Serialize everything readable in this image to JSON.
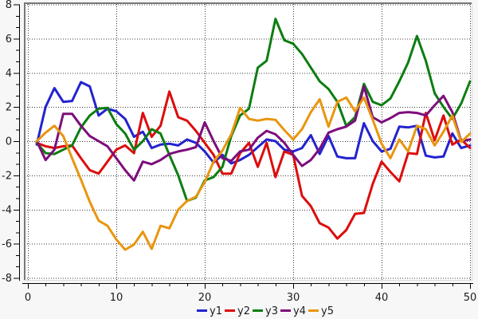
{
  "figure": {
    "background": "#f7f7f7",
    "canvas_background": "#ffffff",
    "canvas_border_dark": "#787878",
    "canvas_border_light": "#d9d9d9",
    "grid_color": "#3c3c3c",
    "axis_color": "#000000",
    "tick_label_color": "#1c1c1c",
    "tick_label_font_px": 13
  },
  "chart_data": {
    "type": "line",
    "title": "",
    "xlabel": "",
    "ylabel": "",
    "xlim": [
      0,
      50
    ],
    "ylim": [
      -8,
      8
    ],
    "x_start": 1,
    "x_step": 1,
    "grid": "dotted-major",
    "x_major_ticks": [
      0,
      10,
      20,
      30,
      40,
      50
    ],
    "x_tick_labels": [
      "0",
      "10",
      "20",
      "30",
      "40",
      "50"
    ],
    "x_minor_step": 2,
    "y_major_ticks": [
      -8,
      -6,
      -4,
      -2,
      0,
      2,
      4,
      6,
      8
    ],
    "y_tick_labels": [
      "-8",
      "-6",
      "-4",
      "-2",
      "0",
      "2",
      "4",
      "6",
      "8"
    ],
    "y_minor_per_major": 3,
    "legend_position": "bottom-center",
    "line_width": 3,
    "series": [
      {
        "name": "y1",
        "color": "#2323cf",
        "values": [
          -0.2,
          2.0,
          3.1,
          2.3,
          2.35,
          3.45,
          3.2,
          1.5,
          1.9,
          1.75,
          1.3,
          0.25,
          0.55,
          -0.4,
          -0.2,
          -0.15,
          -0.25,
          0.1,
          -0.1,
          -0.6,
          -1.25,
          -0.8,
          -1.3,
          -1.1,
          -0.8,
          -0.35,
          0.1,
          0.0,
          -0.5,
          -0.6,
          -0.4,
          0.35,
          -0.75,
          0.3,
          -0.9,
          -1.0,
          -1.0,
          1.05,
          0.0,
          -0.6,
          -0.45,
          0.85,
          0.8,
          0.9,
          -0.85,
          -0.95,
          -0.9,
          0.45,
          -0.4,
          -0.25
        ]
      },
      {
        "name": "y2",
        "color": "#dc0d0d",
        "values": [
          -0.1,
          -0.3,
          -0.4,
          -0.3,
          -0.25,
          -1.0,
          -1.7,
          -1.9,
          -1.2,
          -0.5,
          -0.25,
          -0.7,
          1.65,
          0.25,
          0.9,
          2.9,
          1.4,
          1.2,
          0.6,
          -0.1,
          -0.8,
          -1.9,
          -1.9,
          -0.7,
          -0.1,
          -1.5,
          -0.1,
          -2.1,
          -0.6,
          -0.8,
          -3.2,
          -3.8,
          -4.8,
          -5.05,
          -5.7,
          -5.2,
          -4.25,
          -4.2,
          -2.5,
          -1.2,
          -1.8,
          -2.35,
          -0.7,
          -0.75,
          1.65,
          0.05,
          1.5,
          -0.2,
          0.1,
          -0.4
        ]
      },
      {
        "name": "y3",
        "color": "#0d7d12",
        "values": [
          -0.1,
          -0.7,
          -0.75,
          -0.5,
          -0.25,
          0.8,
          1.5,
          1.9,
          1.95,
          1.0,
          0.45,
          -0.5,
          0.0,
          0.7,
          0.45,
          -0.8,
          -2.0,
          -3.5,
          -3.3,
          -2.3,
          -2.1,
          -1.5,
          0.3,
          1.5,
          1.9,
          4.3,
          4.7,
          7.15,
          5.9,
          5.7,
          5.1,
          4.3,
          3.5,
          3.05,
          2.3,
          0.9,
          1.4,
          3.35,
          2.3,
          2.1,
          2.5,
          3.5,
          4.6,
          6.15,
          4.7,
          2.8,
          2.0,
          1.3,
          2.2,
          3.5
        ]
      },
      {
        "name": "y4",
        "color": "#7c0e7c",
        "values": [
          0.0,
          -1.1,
          -0.5,
          1.6,
          1.6,
          0.9,
          0.3,
          0.0,
          -0.3,
          -1.0,
          -1.7,
          -2.3,
          -1.2,
          -1.35,
          -1.1,
          -0.75,
          -0.6,
          -0.5,
          -0.35,
          1.1,
          0.0,
          -1.0,
          -1.15,
          -0.6,
          -0.5,
          0.2,
          0.6,
          0.4,
          -0.1,
          -0.8,
          -1.45,
          -1.1,
          -0.45,
          0.5,
          0.7,
          0.85,
          1.2,
          3.2,
          1.4,
          1.1,
          1.35,
          1.65,
          1.7,
          1.65,
          1.5,
          2.1,
          2.65,
          1.7,
          0.0,
          0.1
        ]
      },
      {
        "name": "y5",
        "color": "#e8960f",
        "values": [
          0.0,
          0.5,
          0.9,
          0.3,
          -1.0,
          -2.25,
          -3.55,
          -4.65,
          -4.95,
          -5.75,
          -6.35,
          -6.05,
          -5.3,
          -6.3,
          -4.95,
          -5.1,
          -4.0,
          -3.5,
          -3.25,
          -2.4,
          -1.2,
          -0.55,
          0.4,
          1.95,
          1.3,
          1.2,
          1.3,
          1.25,
          0.65,
          0.1,
          0.7,
          1.7,
          2.45,
          0.85,
          2.3,
          2.55,
          1.75,
          2.55,
          1.25,
          -0.15,
          -1.0,
          0.1,
          -0.6,
          0.9,
          0.7,
          -0.25,
          0.55,
          1.5,
          -0.05,
          0.45
        ]
      }
    ],
    "legend": [
      {
        "label": "y1",
        "color": "#2323cf"
      },
      {
        "label": "y2",
        "color": "#dc0d0d"
      },
      {
        "label": "y3",
        "color": "#0d7d12"
      },
      {
        "label": "y4",
        "color": "#7c0e7c"
      },
      {
        "label": "y5",
        "color": "#e8960f"
      }
    ]
  }
}
